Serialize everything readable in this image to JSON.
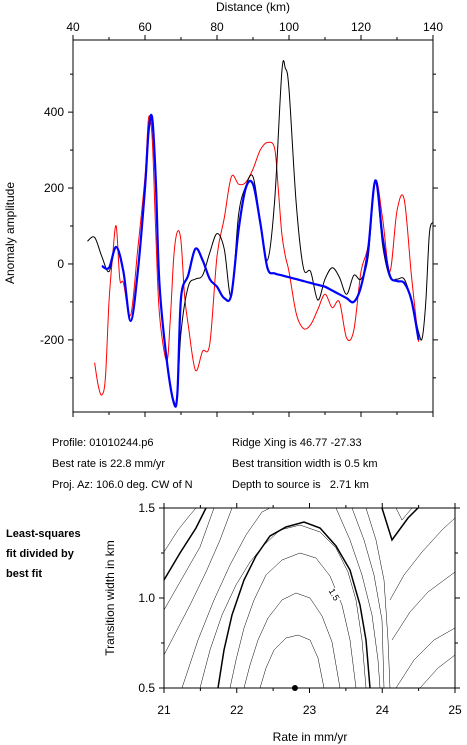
{
  "chart_data": [
    {
      "type": "line",
      "xlabel": "Distance (km)",
      "ylabel": "Anomaly amplitude",
      "xlim": [
        40,
        140
      ],
      "ylim": [
        -390,
        590
      ],
      "x_ticks": [
        40,
        60,
        80,
        100,
        120,
        140
      ],
      "y_ticks": [
        -200,
        0,
        200,
        400
      ],
      "series": [
        {
          "color": "#000000",
          "x": [
            44,
            46,
            48,
            50,
            52,
            54,
            56,
            58,
            60,
            61,
            62,
            63,
            64,
            66,
            68,
            69,
            70,
            72,
            74,
            76,
            78,
            80,
            82,
            84,
            86,
            88,
            90,
            92,
            94,
            96,
            98,
            99,
            100,
            102,
            104,
            106,
            108,
            110,
            112,
            114,
            116,
            118,
            120,
            122,
            124,
            126,
            128,
            130,
            132,
            134,
            136,
            137,
            138,
            139,
            140
          ],
          "y": [
            60,
            70,
            20,
            -20,
            45,
            -20,
            -150,
            -20,
            200,
            350,
            370,
            200,
            -50,
            -250,
            -370,
            -340,
            -180,
            -60,
            -40,
            -30,
            30,
            80,
            40,
            -85,
            130,
            205,
            230,
            115,
            10,
            165,
            505,
            515,
            460,
            160,
            -10,
            -20,
            -95,
            -40,
            -10,
            -35,
            -80,
            -30,
            -40,
            20,
            220,
            50,
            -35,
            -40,
            -40,
            -95,
            -180,
            -195,
            -100,
            80,
            110
          ]
        },
        {
          "color": "#ff0000",
          "x": [
            46,
            47,
            48,
            49,
            50,
            51,
            52,
            53,
            54,
            56,
            58,
            60,
            61,
            62,
            63,
            64,
            66,
            67,
            68,
            69,
            70,
            71,
            72,
            74,
            76,
            78,
            80,
            82,
            84,
            86,
            88,
            90,
            92,
            94,
            96,
            97,
            98,
            99,
            100,
            102,
            104,
            106,
            108,
            110,
            112,
            114,
            116,
            118,
            120,
            122,
            124,
            126,
            128,
            130,
            132,
            134,
            136
          ],
          "y": [
            -260,
            -320,
            -345,
            -300,
            -100,
            20,
            100,
            -40,
            -50,
            -135,
            40,
            230,
            385,
            330,
            80,
            -130,
            -255,
            -150,
            20,
            85,
            60,
            -85,
            -160,
            -280,
            -230,
            -210,
            20,
            120,
            230,
            210,
            215,
            250,
            300,
            320,
            305,
            200,
            80,
            20,
            -20,
            -130,
            -170,
            -160,
            -120,
            -80,
            -115,
            -100,
            -195,
            -175,
            -20,
            50,
            220,
            120,
            -20,
            140,
            170,
            -30,
            -205
          ]
        },
        {
          "color": "#0000ff",
          "x": [
            48,
            50,
            52,
            54,
            56,
            58,
            60,
            61,
            62,
            63,
            64,
            66,
            68,
            69,
            70,
            72,
            74,
            76,
            78,
            80,
            82,
            84,
            86,
            88,
            90,
            92,
            94,
            96,
            98,
            100,
            102,
            104,
            106,
            108,
            110,
            112,
            114,
            116,
            118,
            120,
            122,
            124,
            126,
            128,
            130,
            132,
            134,
            136
          ],
          "y": [
            -5,
            -10,
            45,
            -20,
            -150,
            -20,
            200,
            350,
            385,
            220,
            -50,
            -250,
            -365,
            -340,
            -90,
            -30,
            40,
            10,
            -40,
            -60,
            -90,
            -80,
            90,
            200,
            210,
            110,
            -10,
            -25,
            -30,
            -35,
            -40,
            -45,
            -50,
            -55,
            -60,
            -70,
            -80,
            -90,
            -100,
            -60,
            40,
            220,
            70,
            -30,
            -45,
            -50,
            -95,
            -200
          ]
        }
      ]
    },
    {
      "type": "contour",
      "xlabel": "Rate in mm/yr",
      "ylabel": "Transition width in km",
      "xlim": [
        21,
        25
      ],
      "ylim": [
        0.5,
        1.5
      ],
      "x_ticks": [
        21,
        22,
        23,
        24,
        25
      ],
      "y_ticks": [
        0.5,
        1.0,
        1.5
      ],
      "contour_label": "1.5",
      "best_fit": {
        "rate": 22.8,
        "width": 0.5
      }
    }
  ],
  "info": {
    "profile": "Profile: 01010244.p6",
    "ridge": "Ridge Xing is 46.77 -27.33",
    "best_rate": "Best rate is 22.8 mm/yr",
    "best_width": "Best transition width is 0.5 km",
    "proj": "Proj. Az: 106.0 deg. CW of N",
    "depth": "Depth to source is   2.71 km"
  },
  "side_label": [
    "Least-squares",
    "fit divided by",
    "best fit"
  ]
}
